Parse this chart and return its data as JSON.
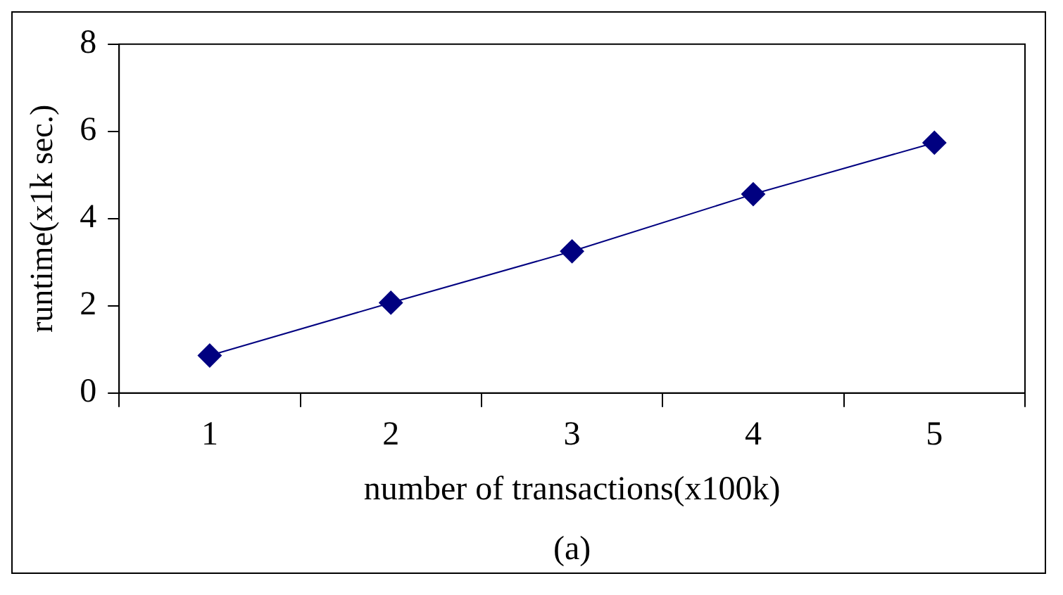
{
  "chart_data": {
    "type": "line",
    "xlabel": "number of transactions(x100k)",
    "ylabel": "runtime(x1k sec.)",
    "categories": [
      "1",
      "2",
      "3",
      "4",
      "5"
    ],
    "series": [
      {
        "color": "#000080",
        "values": [
          0.86,
          2.07,
          3.25,
          4.56,
          5.74
        ]
      }
    ],
    "ylim": [
      0,
      8
    ],
    "yticks": [
      0,
      2,
      4,
      6,
      8
    ],
    "grid": false,
    "legend": false,
    "marker": "diamond",
    "line_style": "solid",
    "annotations": [
      "(a)"
    ]
  }
}
